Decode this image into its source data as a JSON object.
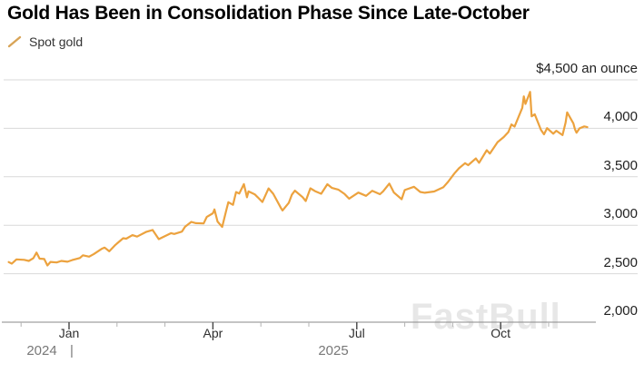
{
  "header": {
    "title": "Gold Has Been in Consolidation Phase Since Late-October"
  },
  "legend": {
    "series_label": "Spot gold"
  },
  "watermark": {
    "text": "FastBull"
  },
  "colors": {
    "line": "#ECA23E",
    "legend_swatch": "#D8A457",
    "gridline": "#d9d9d9",
    "axis_line": "#8a8a8a",
    "major_tick": "#444444",
    "minor_tick": "#b3b3b3"
  },
  "y_axis": {
    "labels": [
      {
        "value": 4500,
        "text": "$4,500 an ounce"
      },
      {
        "value": 4000,
        "text": "4,000"
      },
      {
        "value": 3500,
        "text": "3,500"
      },
      {
        "value": 3000,
        "text": "3,000"
      },
      {
        "value": 2500,
        "text": "2,500"
      },
      {
        "value": 2000,
        "text": "2,000"
      }
    ]
  },
  "x_axis": {
    "ticks": [
      {
        "m": -1,
        "major": false
      },
      {
        "m": 0,
        "major": true,
        "label": "Jan"
      },
      {
        "m": 1,
        "major": false
      },
      {
        "m": 2,
        "major": false
      },
      {
        "m": 3,
        "major": true,
        "label": "Apr"
      },
      {
        "m": 4,
        "major": false
      },
      {
        "m": 5,
        "major": false
      },
      {
        "m": 6,
        "major": true,
        "label": "Jul"
      },
      {
        "m": 7,
        "major": false
      },
      {
        "m": 8,
        "major": false
      },
      {
        "m": 9,
        "major": true,
        "label": "Oct"
      },
      {
        "m": 10,
        "major": false
      }
    ],
    "years": {
      "left": "2024",
      "divider": "|",
      "right": "2025"
    }
  },
  "chart_data": {
    "type": "line",
    "title": "Gold Has Been in Consolidation Phase Since Late-October",
    "ylabel": "$ an ounce",
    "ylim": [
      2000,
      4500
    ],
    "yticks": [
      2000,
      2500,
      3000,
      3500,
      4000,
      4500
    ],
    "xticks": [
      "Jan",
      "Apr",
      "Jul",
      "Oct"
    ],
    "x_range": [
      "2024-11-24",
      "2025-11-26"
    ],
    "grid": true,
    "legend_position": "top-left",
    "series": [
      {
        "name": "Spot gold",
        "color": "#ECA23E",
        "points": [
          [
            "2024-11-24",
            2620
          ],
          [
            "2024-11-26",
            2604
          ],
          [
            "2024-11-29",
            2648
          ],
          [
            "2024-12-03",
            2643
          ],
          [
            "2024-12-06",
            2632
          ],
          [
            "2024-12-09",
            2661
          ],
          [
            "2024-12-11",
            2718
          ],
          [
            "2024-12-13",
            2655
          ],
          [
            "2024-12-16",
            2652
          ],
          [
            "2024-12-18",
            2585
          ],
          [
            "2024-12-20",
            2622
          ],
          [
            "2024-12-24",
            2616
          ],
          [
            "2024-12-27",
            2632
          ],
          [
            "2024-12-31",
            2624
          ],
          [
            "2025-01-03",
            2640
          ],
          [
            "2025-01-08",
            2662
          ],
          [
            "2025-01-10",
            2690
          ],
          [
            "2025-01-14",
            2676
          ],
          [
            "2025-01-17",
            2703
          ],
          [
            "2025-01-22",
            2756
          ],
          [
            "2025-01-24",
            2770
          ],
          [
            "2025-01-27",
            2731
          ],
          [
            "2025-01-31",
            2798
          ],
          [
            "2025-02-05",
            2866
          ],
          [
            "2025-02-07",
            2861
          ],
          [
            "2025-02-11",
            2898
          ],
          [
            "2025-02-14",
            2883
          ],
          [
            "2025-02-20",
            2933
          ],
          [
            "2025-02-24",
            2951
          ],
          [
            "2025-02-28",
            2857
          ],
          [
            "2025-03-05",
            2919
          ],
          [
            "2025-03-07",
            2910
          ],
          [
            "2025-03-12",
            2934
          ],
          [
            "2025-03-14",
            2984
          ],
          [
            "2025-03-18",
            3035
          ],
          [
            "2025-03-21",
            3022
          ],
          [
            "2025-03-26",
            3019
          ],
          [
            "2025-03-28",
            3085
          ],
          [
            "2025-04-01",
            3124
          ],
          [
            "2025-04-02",
            3163
          ],
          [
            "2025-04-04",
            3038
          ],
          [
            "2025-04-07",
            2983
          ],
          [
            "2025-04-10",
            3176
          ],
          [
            "2025-04-11",
            3238
          ],
          [
            "2025-04-14",
            3211
          ],
          [
            "2025-04-16",
            3343
          ],
          [
            "2025-04-18",
            3327
          ],
          [
            "2025-04-21",
            3424
          ],
          [
            "2025-04-23",
            3288
          ],
          [
            "2025-04-24",
            3349
          ],
          [
            "2025-04-28",
            3319
          ],
          [
            "2025-04-30",
            3288
          ],
          [
            "2025-05-02",
            3240
          ],
          [
            "2025-05-06",
            3380
          ],
          [
            "2025-05-09",
            3325
          ],
          [
            "2025-05-14",
            3178
          ],
          [
            "2025-05-15",
            3153
          ],
          [
            "2025-05-19",
            3230
          ],
          [
            "2025-05-21",
            3315
          ],
          [
            "2025-05-23",
            3357
          ],
          [
            "2025-05-28",
            3289
          ],
          [
            "2025-05-30",
            3250
          ],
          [
            "2025-06-02",
            3381
          ],
          [
            "2025-06-05",
            3352
          ],
          [
            "2025-06-09",
            3325
          ],
          [
            "2025-06-13",
            3423
          ],
          [
            "2025-06-16",
            3385
          ],
          [
            "2025-06-20",
            3368
          ],
          [
            "2025-06-24",
            3324
          ],
          [
            "2025-06-27",
            3274
          ],
          [
            "2025-07-02",
            3337
          ],
          [
            "2025-07-07",
            3303
          ],
          [
            "2025-07-11",
            3356
          ],
          [
            "2025-07-16",
            3320
          ],
          [
            "2025-07-18",
            3350
          ],
          [
            "2025-07-22",
            3430
          ],
          [
            "2025-07-25",
            3337
          ],
          [
            "2025-07-30",
            3269
          ],
          [
            "2025-08-01",
            3363
          ],
          [
            "2025-08-07",
            3397
          ],
          [
            "2025-08-11",
            3344
          ],
          [
            "2025-08-14",
            3335
          ],
          [
            "2025-08-20",
            3348
          ],
          [
            "2025-08-26",
            3393
          ],
          [
            "2025-08-29",
            3448
          ],
          [
            "2025-09-02",
            3533
          ],
          [
            "2025-09-05",
            3587
          ],
          [
            "2025-09-09",
            3640
          ],
          [
            "2025-09-11",
            3620
          ],
          [
            "2025-09-16",
            3689
          ],
          [
            "2025-09-18",
            3644
          ],
          [
            "2025-09-23",
            3774
          ],
          [
            "2025-09-25",
            3740
          ],
          [
            "2025-09-30",
            3858
          ],
          [
            "2025-10-03",
            3910
          ],
          [
            "2025-10-06",
            3962
          ],
          [
            "2025-10-08",
            4040
          ],
          [
            "2025-10-10",
            4018
          ],
          [
            "2025-10-15",
            4212
          ],
          [
            "2025-10-16",
            4330
          ],
          [
            "2025-10-17",
            4252
          ],
          [
            "2025-10-20",
            4375
          ],
          [
            "2025-10-21",
            4124
          ],
          [
            "2025-10-23",
            4145
          ],
          [
            "2025-10-27",
            3985
          ],
          [
            "2025-10-29",
            3938
          ],
          [
            "2025-10-31",
            4002
          ],
          [
            "2025-11-04",
            3945
          ],
          [
            "2025-11-06",
            3975
          ],
          [
            "2025-11-10",
            3930
          ],
          [
            "2025-11-12",
            4060
          ],
          [
            "2025-11-13",
            4165
          ],
          [
            "2025-11-17",
            4050
          ],
          [
            "2025-11-18",
            3990
          ],
          [
            "2025-11-19",
            3955
          ],
          [
            "2025-11-21",
            4000
          ],
          [
            "2025-11-24",
            4020
          ],
          [
            "2025-11-26",
            4012
          ]
        ]
      }
    ]
  }
}
